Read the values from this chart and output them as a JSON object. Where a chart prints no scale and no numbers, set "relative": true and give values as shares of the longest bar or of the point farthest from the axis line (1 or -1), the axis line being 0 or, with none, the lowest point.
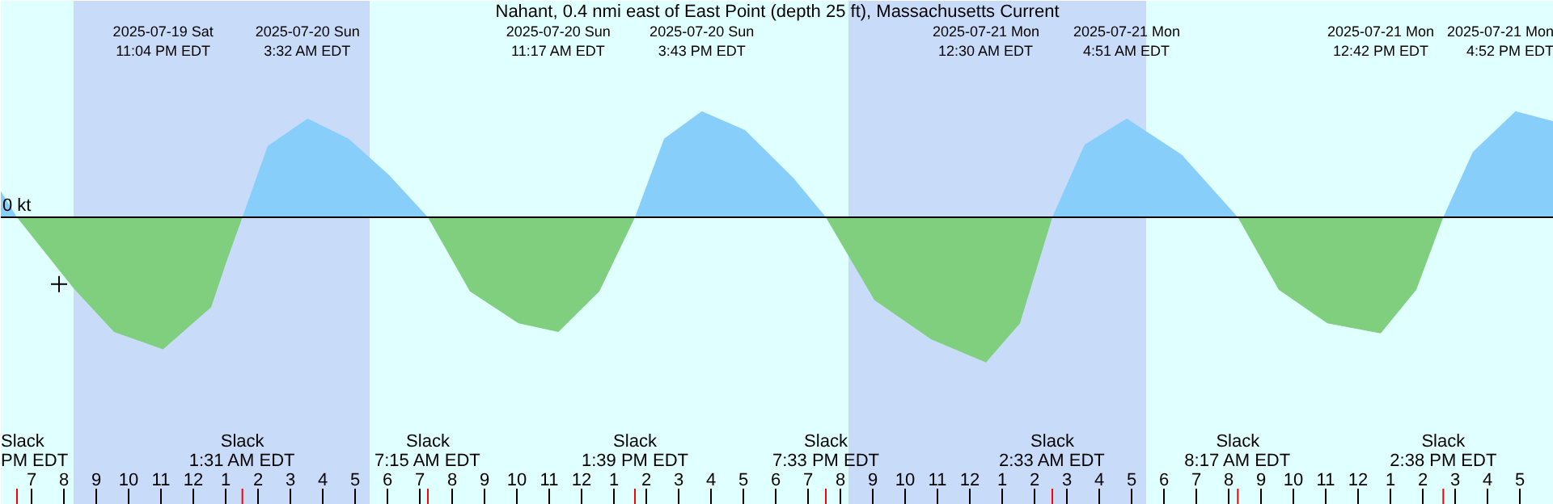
{
  "chart_data": {
    "type": "area",
    "title": "Nahant, 0.4 nmi east of East Point (depth 25 ft), Massachusetts Current",
    "relative": true,
    "grid": false,
    "xlim": [
      "2025-07-19T18:03",
      "2025-07-21T18:03"
    ],
    "xticks": [
      {
        "value": "2025-07-19T19:00",
        "label": "7"
      },
      {
        "value": "2025-07-19T20:00",
        "label": "8"
      },
      {
        "value": "2025-07-19T21:00",
        "label": "9"
      },
      {
        "value": "2025-07-19T22:00",
        "label": "10"
      },
      {
        "value": "2025-07-19T23:00",
        "label": "11"
      },
      {
        "value": "2025-07-20T00:00",
        "label": "12"
      },
      {
        "value": "2025-07-20T01:00",
        "label": "1"
      },
      {
        "value": "2025-07-20T02:00",
        "label": "2"
      },
      {
        "value": "2025-07-20T03:00",
        "label": "3"
      },
      {
        "value": "2025-07-20T04:00",
        "label": "4"
      },
      {
        "value": "2025-07-20T05:00",
        "label": "5"
      },
      {
        "value": "2025-07-20T06:00",
        "label": "6"
      },
      {
        "value": "2025-07-20T07:00",
        "label": "7"
      },
      {
        "value": "2025-07-20T08:00",
        "label": "8"
      },
      {
        "value": "2025-07-20T09:00",
        "label": "9"
      },
      {
        "value": "2025-07-20T10:00",
        "label": "10"
      },
      {
        "value": "2025-07-20T11:00",
        "label": "11"
      },
      {
        "value": "2025-07-20T12:00",
        "label": "12"
      },
      {
        "value": "2025-07-20T13:00",
        "label": "1"
      },
      {
        "value": "2025-07-20T14:00",
        "label": "2"
      },
      {
        "value": "2025-07-20T15:00",
        "label": "3"
      },
      {
        "value": "2025-07-20T16:00",
        "label": "4"
      },
      {
        "value": "2025-07-20T17:00",
        "label": "5"
      },
      {
        "value": "2025-07-20T18:00",
        "label": "6"
      },
      {
        "value": "2025-07-20T19:00",
        "label": "7"
      },
      {
        "value": "2025-07-20T20:00",
        "label": "8"
      },
      {
        "value": "2025-07-20T21:00",
        "label": "9"
      },
      {
        "value": "2025-07-20T22:00",
        "label": "10"
      },
      {
        "value": "2025-07-20T23:00",
        "label": "11"
      },
      {
        "value": "2025-07-21T00:00",
        "label": "12"
      },
      {
        "value": "2025-07-21T01:00",
        "label": "1"
      },
      {
        "value": "2025-07-21T02:00",
        "label": "2"
      },
      {
        "value": "2025-07-21T03:00",
        "label": "3"
      },
      {
        "value": "2025-07-21T04:00",
        "label": "4"
      },
      {
        "value": "2025-07-21T05:00",
        "label": "5"
      },
      {
        "value": "2025-07-21T06:00",
        "label": "6"
      },
      {
        "value": "2025-07-21T07:00",
        "label": "7"
      },
      {
        "value": "2025-07-21T08:00",
        "label": "8"
      },
      {
        "value": "2025-07-21T09:00",
        "label": "9"
      },
      {
        "value": "2025-07-21T10:00",
        "label": "10"
      },
      {
        "value": "2025-07-21T11:00",
        "label": "11"
      },
      {
        "value": "2025-07-21T12:00",
        "label": "12"
      },
      {
        "value": "2025-07-21T13:00",
        "label": "1"
      },
      {
        "value": "2025-07-21T14:00",
        "label": "2"
      },
      {
        "value": "2025-07-21T15:00",
        "label": "3"
      },
      {
        "value": "2025-07-21T16:00",
        "label": "4"
      },
      {
        "value": "2025-07-21T17:00",
        "label": "5"
      }
    ],
    "x": [
      "2025-07-19T18:03",
      "2025-07-19T18:33",
      "2025-07-19T20:18",
      "2025-07-19T21:33",
      "2025-07-19T23:04",
      "2025-07-20T00:33",
      "2025-07-20T01:03",
      "2025-07-20T01:31",
      "2025-07-20T02:18",
      "2025-07-20T03:32",
      "2025-07-20T04:48",
      "2025-07-20T06:03",
      "2025-07-20T07:15",
      "2025-07-20T08:33",
      "2025-07-20T10:03",
      "2025-07-20T11:17",
      "2025-07-20T12:33",
      "2025-07-20T13:39",
      "2025-07-20T14:33",
      "2025-07-20T15:43",
      "2025-07-20T17:03",
      "2025-07-20T18:33",
      "2025-07-20T19:33",
      "2025-07-20T21:03",
      "2025-07-20T22:48",
      "2025-07-21T00:30",
      "2025-07-21T01:33",
      "2025-07-21T02:33",
      "2025-07-21T03:33",
      "2025-07-21T04:51",
      "2025-07-21T06:33",
      "2025-07-21T08:17",
      "2025-07-21T09:33",
      "2025-07-21T11:03",
      "2025-07-21T12:42",
      "2025-07-21T13:48",
      "2025-07-21T14:38",
      "2025-07-21T15:33",
      "2025-07-21T16:52",
      "2025-07-21T18:03"
    ],
    "series": [
      {
        "color": "#87cefa",
        "values": [
          0.18,
          0,
          null,
          null,
          null,
          null,
          null,
          0,
          0.49,
          0.68,
          0.54,
          0.29,
          0,
          null,
          null,
          null,
          null,
          0,
          0.54,
          0.73,
          0.6,
          0.27,
          0,
          null,
          null,
          null,
          null,
          0,
          0.5,
          0.68,
          0.43,
          0,
          null,
          null,
          null,
          null,
          0,
          0.45,
          0.73,
          0.66
        ]
      },
      {
        "color": "#7fcf7f",
        "values": [
          null,
          0,
          -0.49,
          -0.79,
          -0.91,
          -0.62,
          -0.29,
          0,
          null,
          null,
          null,
          null,
          0,
          -0.51,
          -0.73,
          -0.79,
          -0.51,
          0,
          null,
          null,
          null,
          null,
          0,
          -0.57,
          -0.84,
          -1,
          -0.73,
          0,
          null,
          null,
          null,
          0,
          -0.5,
          -0.73,
          -0.8,
          -0.5,
          0,
          null,
          null,
          null
        ]
      },
      {
        "type": "scatter",
        "marker": "cross",
        "color": "#000000",
        "x": [
          "2025-07-19T19:51"
        ],
        "values": [
          -0.46
        ]
      }
    ],
    "bands": [
      {
        "axis": "x",
        "from": "2025-07-19T20:18",
        "to": "2025-07-20T05:27",
        "color": "#c8dcfa"
      },
      {
        "axis": "x",
        "from": "2025-07-20T20:15",
        "to": "2025-07-21T05:27",
        "color": "#c8dcfa"
      }
    ],
    "annotations": [
      "0 kt",
      "2025-07-19 Sat\n11:04 PM EDT",
      "2025-07-20 Sun\n3:32 AM EDT",
      "2025-07-20 Sun\n11:17 AM EDT",
      "2025-07-20 Sun\n3:43 PM EDT",
      "2025-07-21 Mon\n12:30 AM EDT",
      "2025-07-21 Mon\n4:51 AM EDT",
      "2025-07-21 Mon\n12:42 PM EDT",
      "2025-07-21 Mon\n4:52 PM EDT",
      "Slack\nPM EDT",
      {
        "text": "Slack\n1:31 AM EDT",
        "x": "2025-07-20T01:31"
      },
      {
        "text": "Slack\n7:15 AM EDT",
        "x": "2025-07-20T07:15"
      },
      {
        "text": "Slack\n1:39 PM EDT",
        "x": "2025-07-20T13:39"
      },
      {
        "text": "Slack\n7:33 PM EDT",
        "x": "2025-07-20T19:33"
      },
      {
        "text": "Slack\n2:33 AM EDT",
        "x": "2025-07-21T02:33"
      },
      {
        "text": "Slack\n8:17 AM EDT",
        "x": "2025-07-21T08:17"
      },
      {
        "text": "Slack\n2:38 PM EDT",
        "x": "2025-07-21T14:38"
      }
    ]
  }
}
